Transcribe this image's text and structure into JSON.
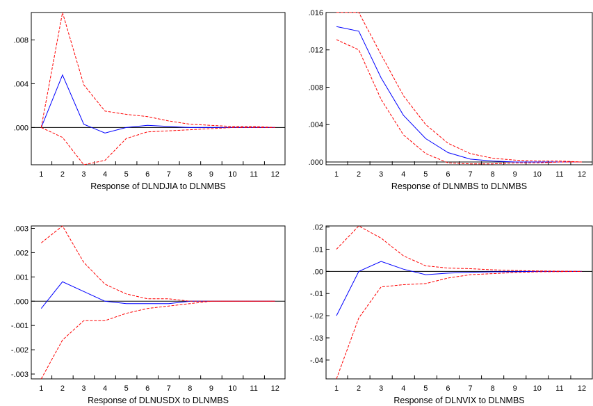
{
  "colors": {
    "response": "#0000ff",
    "bands": "#ff0000",
    "frame": "#000000",
    "zero_line": "#000000"
  },
  "chart_data": [
    {
      "type": "line",
      "title": "",
      "xlabel": "Response of DLNDJIA to DLNMBS",
      "ylabel": "",
      "x": [
        1,
        2,
        3,
        4,
        5,
        6,
        7,
        8,
        9,
        10,
        11,
        12
      ],
      "xticks": [
        "1",
        "2",
        "3",
        "4",
        "5",
        "6",
        "7",
        "8",
        "9",
        "10",
        "11",
        "12"
      ],
      "yticks": [
        0.0,
        0.004,
        0.008
      ],
      "ytick_labels": [
        ".000",
        ".004",
        ".008"
      ],
      "ylim": [
        -0.0034,
        0.0105
      ],
      "zero_line": true,
      "grid": false,
      "series": [
        {
          "role": "response",
          "style": "solid",
          "values": [
            0.0,
            0.0048,
            0.0003,
            -0.0005,
            0.0,
            0.0002,
            0.0001,
            0.0,
            0.0,
            0.0,
            0.0,
            0.0
          ]
        },
        {
          "role": "upper",
          "style": "dashed",
          "values": [
            0.0,
            0.0105,
            0.0039,
            0.0015,
            0.0012,
            0.001,
            0.0006,
            0.0003,
            0.0002,
            0.0001,
            0.0001,
            0.0
          ]
        },
        {
          "role": "lower",
          "style": "dashed",
          "values": [
            0.0,
            -0.0009,
            -0.0034,
            -0.003,
            -0.001,
            -0.0004,
            -0.0003,
            -0.0002,
            -0.0001,
            0.0,
            0.0,
            0.0
          ]
        }
      ]
    },
    {
      "type": "line",
      "title": "",
      "xlabel": "Response of DLNMBS to DLNMBS",
      "ylabel": "",
      "x": [
        1,
        2,
        3,
        4,
        5,
        6,
        7,
        8,
        9,
        10,
        11,
        12
      ],
      "xticks": [
        "1",
        "2",
        "3",
        "4",
        "5",
        "6",
        "7",
        "8",
        "9",
        "10",
        "11",
        "12"
      ],
      "yticks": [
        0.0,
        0.004,
        0.008,
        0.012,
        0.016
      ],
      "ytick_labels": [
        ".000",
        ".004",
        ".008",
        ".012",
        ".016"
      ],
      "ylim": [
        -0.0003,
        0.016
      ],
      "zero_line": true,
      "grid": false,
      "series": [
        {
          "role": "response",
          "style": "solid",
          "values": [
            0.0145,
            0.014,
            0.009,
            0.005,
            0.0025,
            0.001,
            0.0003,
            0.0001,
            0.0,
            0.0,
            0.0,
            0.0
          ]
        },
        {
          "role": "upper",
          "style": "dashed",
          "values": [
            0.016,
            0.016,
            0.0115,
            0.0071,
            0.004,
            0.002,
            0.0009,
            0.0004,
            0.0002,
            0.0001,
            0.0001,
            0.0
          ]
        },
        {
          "role": "lower",
          "style": "dashed",
          "values": [
            0.0131,
            0.012,
            0.0067,
            0.0029,
            0.0009,
            -0.0001,
            -0.0002,
            -0.0002,
            -0.0001,
            -0.0001,
            0.0,
            0.0
          ]
        }
      ]
    },
    {
      "type": "line",
      "title": "",
      "xlabel": "Response of DLNUSDX to DLNMBS",
      "ylabel": "",
      "x": [
        1,
        2,
        3,
        4,
        5,
        6,
        7,
        8,
        9,
        10,
        11,
        12
      ],
      "xticks": [
        "1",
        "2",
        "3",
        "4",
        "5",
        "6",
        "7",
        "8",
        "9",
        "10",
        "11",
        "12"
      ],
      "yticks": [
        -0.003,
        -0.002,
        -0.001,
        0.0,
        0.001,
        0.002,
        0.003
      ],
      "ytick_labels": [
        "-.003",
        "-.002",
        "-.001",
        ".000",
        ".001",
        ".002",
        ".003"
      ],
      "ylim": [
        -0.0032,
        0.0031
      ],
      "zero_line": true,
      "grid": false,
      "series": [
        {
          "role": "response",
          "style": "solid",
          "values": [
            -0.0003,
            0.0008,
            0.0004,
            0.0,
            -0.0001,
            -0.0001,
            -0.0001,
            0.0,
            0.0,
            0.0,
            0.0,
            0.0
          ]
        },
        {
          "role": "upper",
          "style": "dashed",
          "values": [
            0.0024,
            0.0031,
            0.0016,
            0.0007,
            0.0003,
            0.0001,
            0.0001,
            0.0,
            0.0,
            0.0,
            0.0,
            0.0
          ]
        },
        {
          "role": "lower",
          "style": "dashed",
          "values": [
            -0.0032,
            -0.0016,
            -0.0008,
            -0.0008,
            -0.0005,
            -0.0003,
            -0.0002,
            -0.0001,
            0.0,
            0.0,
            0.0,
            0.0
          ]
        }
      ]
    },
    {
      "type": "line",
      "title": "",
      "xlabel": "Response of DLNVIX to DLNMBS",
      "ylabel": "",
      "x": [
        1,
        2,
        3,
        4,
        5,
        6,
        7,
        8,
        9,
        10,
        11,
        12
      ],
      "xticks": [
        "1",
        "2",
        "3",
        "4",
        "5",
        "6",
        "7",
        "8",
        "9",
        "10",
        "11",
        "12"
      ],
      "yticks": [
        -0.04,
        -0.03,
        -0.02,
        -0.01,
        0.0,
        0.01,
        0.02
      ],
      "ytick_labels": [
        "-.04",
        "-.03",
        "-.02",
        "-.01",
        ".00",
        ".01",
        ".02"
      ],
      "ylim": [
        -0.0485,
        0.0205
      ],
      "zero_line": true,
      "grid": false,
      "series": [
        {
          "role": "response",
          "style": "solid",
          "values": [
            -0.02,
            0.0,
            0.0045,
            0.001,
            -0.0015,
            -0.0008,
            -0.0004,
            -0.0002,
            -0.0001,
            0.0,
            0.0,
            0.0
          ]
        },
        {
          "role": "upper",
          "style": "dashed",
          "values": [
            0.01,
            0.0205,
            0.015,
            0.007,
            0.0025,
            0.0015,
            0.0012,
            0.0007,
            0.0004,
            0.0002,
            0.0001,
            0.0
          ]
        },
        {
          "role": "lower",
          "style": "dashed",
          "values": [
            -0.0485,
            -0.021,
            -0.007,
            -0.006,
            -0.0055,
            -0.003,
            -0.0015,
            -0.001,
            -0.0005,
            -0.0002,
            -0.0001,
            0.0
          ]
        }
      ]
    }
  ]
}
